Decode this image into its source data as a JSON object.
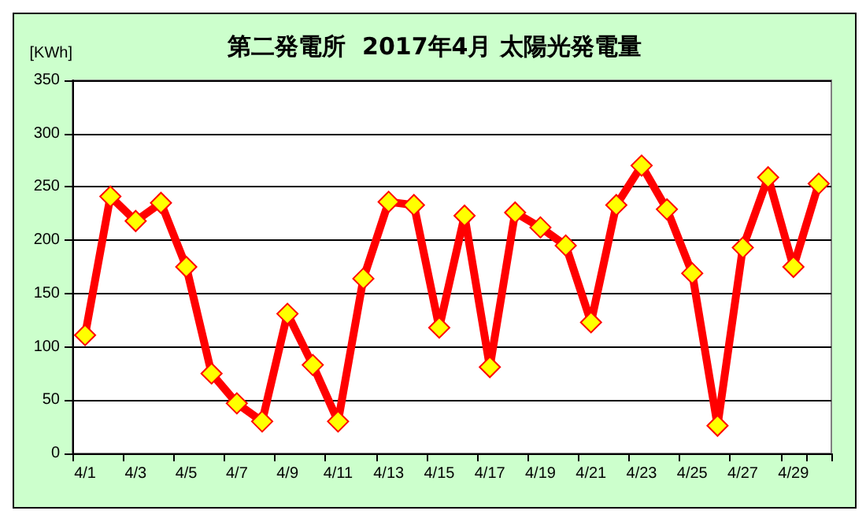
{
  "chart_data": {
    "type": "line",
    "title": "第二発電所  2017年4月 太陽光発電量",
    "ylabel": "[KWh]",
    "categories": [
      "4/1",
      null,
      "4/3",
      null,
      "4/5",
      null,
      "4/7",
      null,
      "4/9",
      null,
      "4/11",
      null,
      "4/13",
      null,
      "4/15",
      null,
      "4/17",
      null,
      "4/19",
      null,
      "4/21",
      null,
      "4/23",
      null,
      "4/25",
      null,
      "4/27",
      null,
      "4/29",
      null
    ],
    "series": [
      {
        "color": "#ff0000",
        "values": [
          111,
          241,
          218,
          235,
          175,
          75,
          47,
          30,
          131,
          83,
          30,
          164,
          236,
          233,
          118,
          223,
          81,
          226,
          212,
          195,
          123,
          233,
          270,
          229,
          169,
          26,
          193,
          259,
          175,
          253
        ]
      }
    ],
    "ylim": [
      0,
      350
    ],
    "yticks": [
      0,
      50,
      100,
      150,
      200,
      250,
      300,
      350
    ],
    "grid": "y",
    "marker": "diamond",
    "line_style": "solid"
  }
}
